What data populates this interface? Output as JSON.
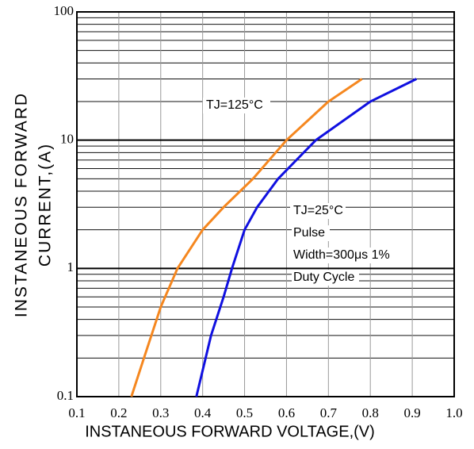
{
  "chart_data": {
    "type": "line",
    "xlabel": "INSTANEOUS FORWARD VOLTAGE,(V)",
    "ylabel": [
      "INSTANEOUS FORWARD",
      "CURRENT,(A)"
    ],
    "series": [
      {
        "name": "TJ=125°C",
        "color": "#f5871f",
        "x": [
          0.23,
          0.26,
          0.3,
          0.34,
          0.4,
          0.45,
          0.52,
          0.6,
          0.7,
          0.78
        ],
        "values": [
          0.1,
          0.2,
          0.5,
          1,
          2,
          3,
          5,
          10,
          20,
          30
        ]
      },
      {
        "name": "TJ=25°C",
        "color": "#1010e0",
        "x": [
          0.385,
          0.42,
          0.45,
          0.47,
          0.5,
          0.53,
          0.58,
          0.67,
          0.8,
          0.91
        ],
        "values": [
          0.1,
          0.3,
          0.6,
          1,
          2,
          3,
          5,
          10,
          20,
          30
        ]
      }
    ],
    "annotations": [
      "Pulse",
      "Width=300μs 1%",
      "Duty Cycle"
    ],
    "xlim": [
      0.1,
      1.0
    ],
    "xticks": [
      0.1,
      0.2,
      0.3,
      0.4,
      0.5,
      0.6,
      0.7,
      0.8,
      0.9,
      {
        "value": 1.0,
        "label": "1.0"
      }
    ],
    "ylim": [
      0.1,
      100
    ],
    "yticks": [
      0.1,
      1,
      10,
      100
    ],
    "ylog": true,
    "grid": true
  }
}
